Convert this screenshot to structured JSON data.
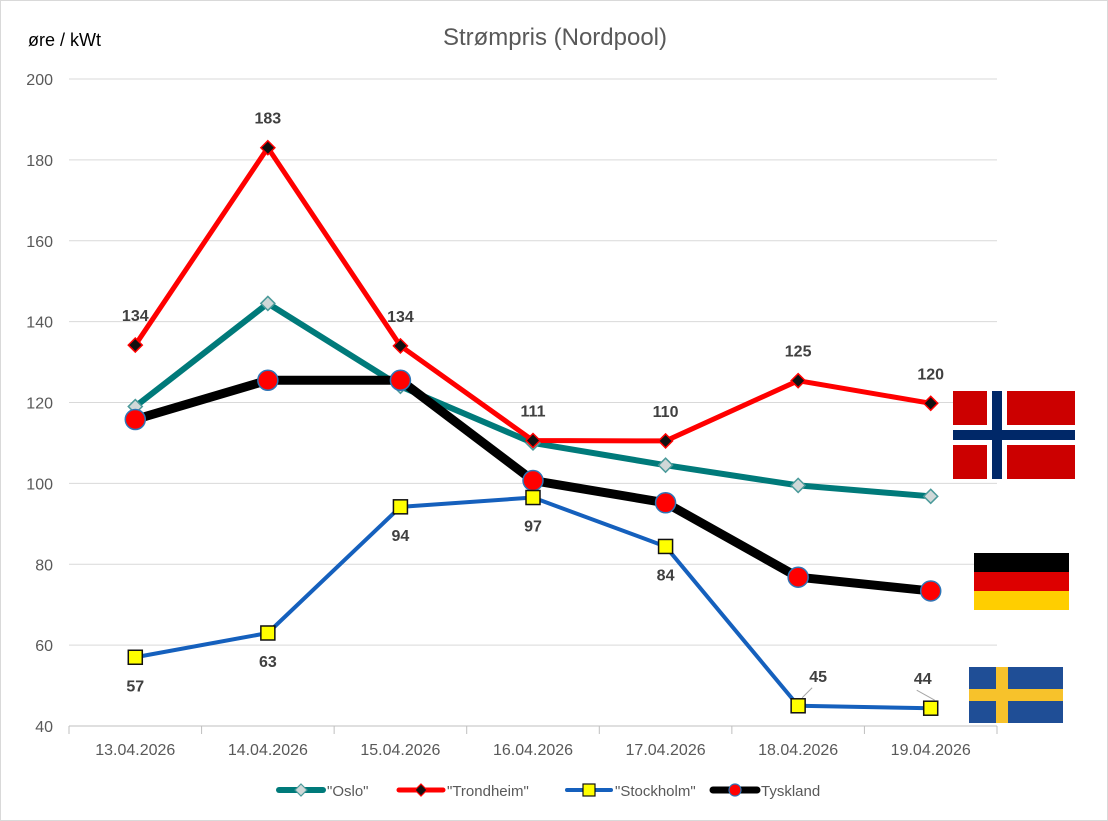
{
  "chart_data": {
    "type": "line",
    "title": "Strømpris (Nordpool)",
    "ylabel": "øre / kWt",
    "ylim": [
      40,
      200
    ],
    "yticks": [
      "40",
      "60",
      "80",
      "100",
      "120",
      "140",
      "160",
      "180",
      "200"
    ],
    "ytick_values": [
      40,
      60,
      80,
      100,
      120,
      140,
      160,
      180,
      200
    ],
    "grid": true,
    "legend_position": "bottom",
    "categories": [
      "13.04.2026",
      "14.04.2026",
      "15.04.2026",
      "16.04.2026",
      "17.04.2026",
      "18.04.2026",
      "19.04.2026"
    ],
    "series": [
      {
        "name": "\"Oslo\"",
        "color": "#007a7a",
        "marker": "diamond",
        "values": [
          119,
          144.5,
          124,
          110,
          104.5,
          99.5,
          96.8
        ],
        "labels": [
          null,
          null,
          null,
          null,
          null,
          null,
          null
        ]
      },
      {
        "name": "\"Trondheim\"",
        "color": "#ff0000",
        "marker": "diamond-dark",
        "values": [
          134.2,
          183,
          134,
          110.6,
          110.5,
          125.4,
          119.8
        ],
        "labels": [
          "134",
          "183",
          "134",
          "111",
          "110",
          "125",
          "120"
        ]
      },
      {
        "name": "\"Stockholm\"",
        "color": "#1560bd",
        "marker": "square",
        "values": [
          57,
          63,
          94.2,
          96.5,
          84.4,
          45,
          44.4
        ],
        "labels": [
          "57",
          "63",
          "94",
          "97",
          "84",
          "45",
          "44"
        ]
      },
      {
        "name": "Tyskland",
        "color": "#000000",
        "marker": "circle",
        "values": [
          115.8,
          125.5,
          125.5,
          100.7,
          95.2,
          76.8,
          73.4
        ],
        "labels": [
          null,
          null,
          null,
          null,
          null,
          null,
          null
        ]
      }
    ],
    "flags": [
      "norway-flag",
      "germany-flag",
      "sweden-flag"
    ]
  }
}
